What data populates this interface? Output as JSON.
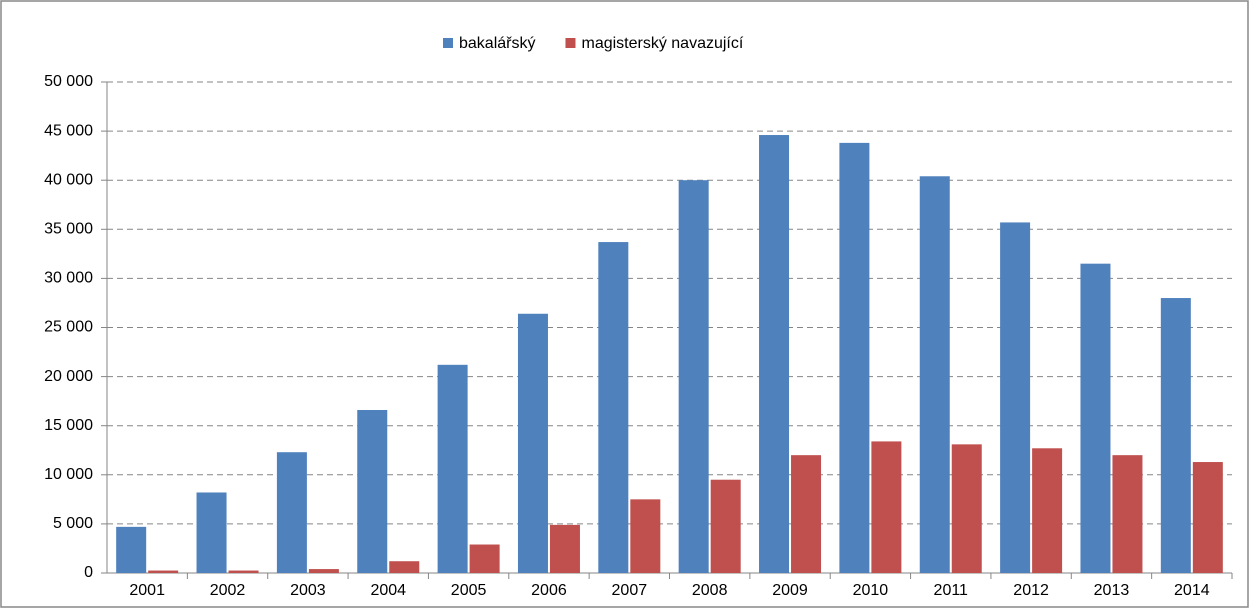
{
  "chart_data": {
    "type": "bar",
    "categories": [
      "2001",
      "2002",
      "2003",
      "2004",
      "2005",
      "2006",
      "2007",
      "2008",
      "2009",
      "2010",
      "2011",
      "2012",
      "2013",
      "2014"
    ],
    "series": [
      {
        "name": "bakalářský",
        "color": "#4f81bd",
        "values": [
          4700,
          8200,
          12300,
          16600,
          21200,
          26400,
          33700,
          40000,
          44600,
          43800,
          40400,
          35700,
          31500,
          28000
        ]
      },
      {
        "name": "magisterský navazující",
        "color": "#c0504d",
        "values": [
          250,
          250,
          400,
          1200,
          2900,
          4900,
          7500,
          9500,
          12000,
          13400,
          13100,
          12700,
          12000,
          11300
        ]
      }
    ],
    "ylim": [
      0,
      50000
    ],
    "yticks": [
      0,
      {
        "value": 5000,
        "label": "5 000"
      },
      {
        "value": 10000,
        "label": "10 000"
      },
      {
        "value": 15000,
        "label": "15 000"
      },
      {
        "value": 20000,
        "label": "20 000"
      },
      {
        "value": 25000,
        "label": "25 000"
      },
      {
        "value": 30000,
        "label": "30 000"
      },
      {
        "value": 35000,
        "label": "35 000"
      },
      {
        "value": 40000,
        "label": "40 000"
      },
      {
        "value": 45000,
        "label": "45 000"
      },
      {
        "value": 50000,
        "label": "50 000"
      }
    ],
    "grid": true,
    "legend": "top"
  }
}
